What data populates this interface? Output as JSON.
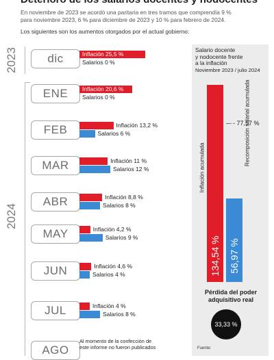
{
  "header": {
    "title": "Deterioro de los salarios docentes y nodocentes",
    "intro_line1": "En noviembre de 2023 se acordó una paritaria en tres tramos que comprendía 9 %",
    "intro_line2": "para noviembre 2023, 6 % para diciembre de 2023 y 10 % para febrero de 2024.",
    "intro_line3": "Los siguientes son los aumentos otorgados por el actual gobierno:"
  },
  "years": {
    "y2023": "2023",
    "y2024": "2024"
  },
  "chart_data": [
    {
      "type": "bar",
      "orientation": "horizontal",
      "categories": [
        "dic",
        "ENE",
        "FEB",
        "MAR",
        "ABR",
        "MAY",
        "JUN",
        "JUL",
        "AGO"
      ],
      "series": [
        {
          "name": "Inflación",
          "color": "#e11d2a",
          "values": [
            25.5,
            20.6,
            13.2,
            11,
            8.8,
            4.2,
            4.6,
            4,
            null
          ]
        },
        {
          "name": "Salarios",
          "color": "#3a8ad6",
          "values": [
            0,
            0,
            6,
            12,
            8,
            9,
            4,
            8,
            null
          ]
        }
      ],
      "value_labels": {
        "inflacion": [
          "Inflación 25,5 %",
          "Inflación 20,6 %",
          "Inflación 13,2 %",
          "Inflación 11 %",
          "Inflación 8,8 %",
          "Inflación 4,2 %",
          "Inflación 4,6 %",
          "Inflación 4 %"
        ],
        "salarios": [
          "Salarios 0 %",
          "Salarios 0 %",
          "Salarios 6 %",
          "Salarios 12 %",
          "Salarios 8 %",
          "Salarios 9 %",
          "Salarios 4 %",
          "Salarios 8 %"
        ]
      },
      "note": [
        "Al momento de la confección de",
        "este informe no fueron publicados"
      ]
    },
    {
      "type": "bar",
      "title_lines": [
        "Salario docente",
        "y nodocente frente",
        "a la inflación"
      ],
      "subtitle": "Noviembre 2023 / julio 2024",
      "categories": [
        "Inflación acumulada",
        "Recomposición salarial acumulada"
      ],
      "values": [
        134.54,
        56.97
      ],
      "value_labels": [
        "134,54 %",
        "56,97 %"
      ],
      "difference_label": "- 77,57 %",
      "colors": [
        "#e11d2a",
        "#3a8ad6"
      ]
    }
  ],
  "loss": {
    "title_line1": "Pérdida del poder",
    "title_line2": "adquisitivo real",
    "value": "33,33 %"
  },
  "source": {
    "label": "Fuente:"
  }
}
